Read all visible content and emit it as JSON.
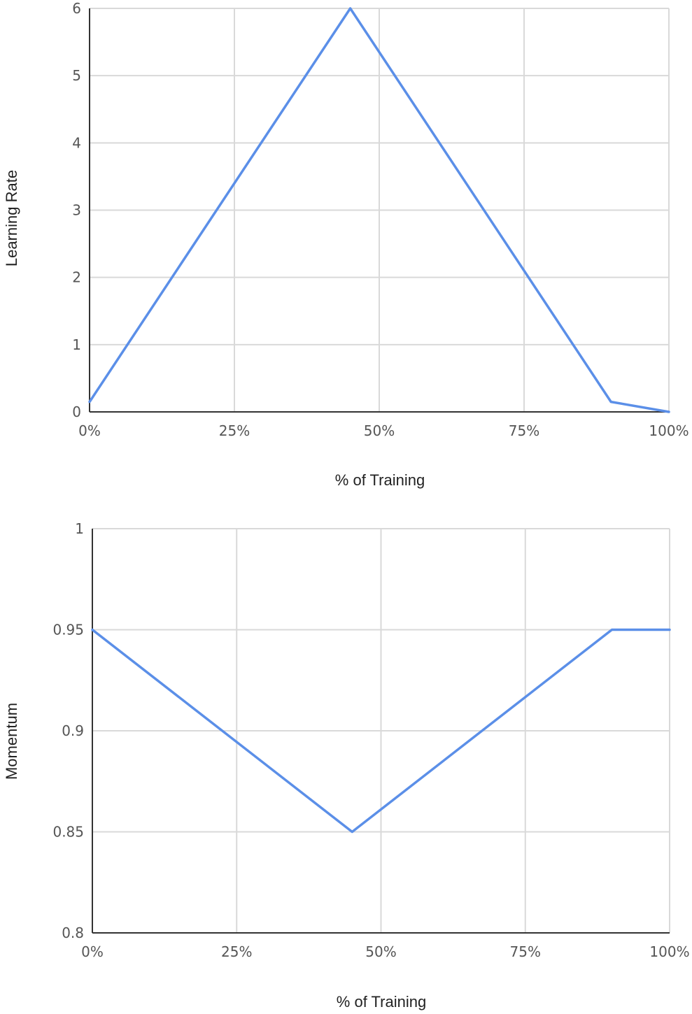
{
  "chart_data": [
    {
      "type": "line",
      "title": "",
      "xlabel": "% of Training",
      "ylabel": "Learning Rate",
      "xlim": [
        0,
        100
      ],
      "ylim": [
        0,
        6
      ],
      "x_ticks": [
        0,
        25,
        50,
        75,
        100
      ],
      "x_tick_labels": [
        "0%",
        "25%",
        "50%",
        "75%",
        "100%"
      ],
      "y_ticks": [
        0,
        1,
        2,
        3,
        4,
        5,
        6
      ],
      "y_tick_labels": [
        "0",
        "1",
        "2",
        "3",
        "4",
        "5",
        "6"
      ],
      "grid": true,
      "series": [
        {
          "color": "#5b8fe8",
          "x": [
            0,
            45,
            90,
            100
          ],
          "y": [
            0.15,
            6,
            0.15,
            0
          ]
        }
      ]
    },
    {
      "type": "line",
      "title": "",
      "xlabel": "% of Training",
      "ylabel": "Momentum",
      "xlim": [
        0,
        100
      ],
      "ylim": [
        0.8,
        1
      ],
      "x_ticks": [
        0,
        25,
        50,
        75,
        100
      ],
      "x_tick_labels": [
        "0%",
        "25%",
        "50%",
        "75%",
        "100%"
      ],
      "y_ticks": [
        0.8,
        0.85,
        0.9,
        0.95,
        1
      ],
      "y_tick_labels": [
        "0.8",
        "0.85",
        "0.9",
        "0.95",
        "1"
      ],
      "grid": true,
      "series": [
        {
          "color": "#5b8fe8",
          "x": [
            0,
            45,
            90,
            100
          ],
          "y": [
            0.95,
            0.85,
            0.95,
            0.95
          ]
        }
      ]
    }
  ]
}
